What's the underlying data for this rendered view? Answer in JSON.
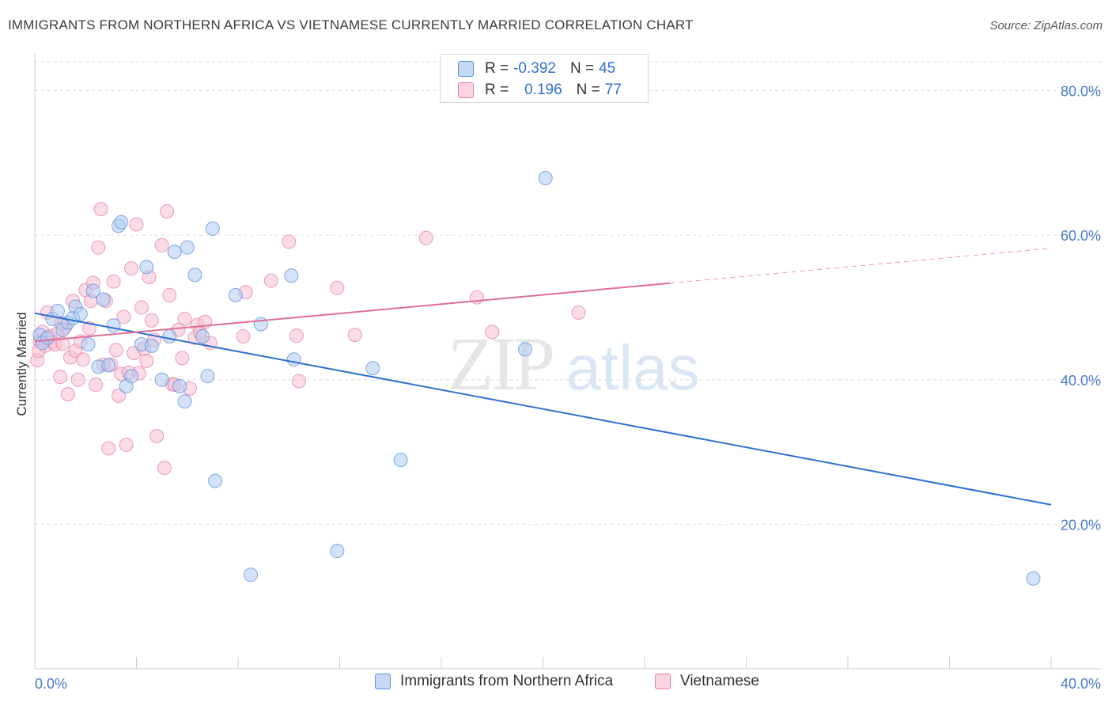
{
  "title": "IMMIGRANTS FROM NORTHERN AFRICA VS VIETNAMESE CURRENTLY MARRIED CORRELATION CHART",
  "source": "Source: ZipAtlas.com",
  "watermark": {
    "zip": "ZIP",
    "atlas": "atlas"
  },
  "colors": {
    "blue_fill": "#aecbf3",
    "blue_stroke": "#5b8fd6",
    "blue_line": "#2e6fd1",
    "pink_fill": "#f7bfd2",
    "pink_stroke": "#e37fa3",
    "pink_line": "#e06c97",
    "axis_text": "#4a7cc8",
    "grid": "#dddddd"
  },
  "legend": {
    "rows": [
      {
        "r_label": "R =",
        "r_value": "-0.392",
        "n_label": "N =",
        "n_value": "45"
      },
      {
        "r_label": "R =",
        "r_value": "0.196",
        "n_label": "N =",
        "n_value": "77"
      }
    ]
  },
  "bottom_legend": [
    "Immigrants from Northern Africa",
    "Vietnamese"
  ],
  "chart_data": {
    "type": "scatter",
    "title": "IMMIGRANTS FROM NORTHERN AFRICA VS VIETNAMESE CURRENTLY MARRIED CORRELATION CHART",
    "xlabel": "",
    "ylabel": "Currently Married",
    "xlim": [
      0,
      40
    ],
    "ylim": [
      0,
      84
    ],
    "x_tick_labels": [
      "0.0%",
      "40.0%"
    ],
    "y_ticks": [
      20,
      40,
      60,
      80
    ],
    "y_tick_labels": [
      "20.0%",
      "40.0%",
      "60.0%",
      "80.0%"
    ],
    "grid": "horizontal dashed",
    "legend_position": "top-center",
    "series": [
      {
        "name": "Immigrants from Northern Africa",
        "color": "#aecbf3",
        "r": -0.392,
        "n": 45,
        "trend": {
          "x": [
            0,
            40
          ],
          "y": [
            49.2,
            22.7
          ],
          "dashed_from": null
        },
        "points": [
          [
            0.2,
            46.2
          ],
          [
            0.3,
            45.1
          ],
          [
            0.5,
            45.8
          ],
          [
            0.7,
            48.4
          ],
          [
            0.9,
            49.5
          ],
          [
            1.1,
            46.9
          ],
          [
            1.3,
            47.9
          ],
          [
            1.5,
            48.5
          ],
          [
            1.6,
            50.1
          ],
          [
            1.8,
            49.1
          ],
          [
            2.1,
            44.9
          ],
          [
            2.3,
            52.3
          ],
          [
            2.5,
            41.8
          ],
          [
            2.7,
            51.1
          ],
          [
            2.9,
            42.0
          ],
          [
            3.1,
            47.5
          ],
          [
            3.3,
            61.3
          ],
          [
            3.4,
            61.8
          ],
          [
            3.6,
            39.1
          ],
          [
            3.8,
            40.5
          ],
          [
            4.2,
            44.9
          ],
          [
            4.4,
            55.6
          ],
          [
            4.6,
            44.7
          ],
          [
            5.0,
            40.0
          ],
          [
            5.3,
            46.0
          ],
          [
            5.5,
            57.7
          ],
          [
            5.7,
            39.1
          ],
          [
            5.9,
            37.0
          ],
          [
            6.0,
            58.3
          ],
          [
            6.3,
            54.5
          ],
          [
            6.6,
            46.0
          ],
          [
            6.8,
            40.5
          ],
          [
            7.0,
            60.9
          ],
          [
            7.1,
            26.0
          ],
          [
            7.9,
            51.7
          ],
          [
            8.5,
            13.0
          ],
          [
            8.9,
            47.7
          ],
          [
            10.1,
            54.4
          ],
          [
            10.2,
            42.8
          ],
          [
            11.9,
            16.3
          ],
          [
            13.3,
            41.6
          ],
          [
            14.4,
            28.9
          ],
          [
            19.3,
            44.2
          ],
          [
            20.1,
            67.9
          ],
          [
            39.3,
            12.5
          ]
        ]
      },
      {
        "name": "Vietnamese",
        "color": "#f7bfd2",
        "r": 0.196,
        "n": 77,
        "trend": {
          "x": [
            0,
            40
          ],
          "y": [
            45.3,
            58.2
          ],
          "dashed_from": 25
        },
        "points": [
          [
            0.1,
            42.7
          ],
          [
            0.2,
            45.3
          ],
          [
            0.3,
            46.6
          ],
          [
            0.4,
            44.7
          ],
          [
            0.5,
            49.3
          ],
          [
            0.6,
            46.0
          ],
          [
            0.7,
            45.2
          ],
          [
            0.8,
            44.9
          ],
          [
            0.9,
            46.4
          ],
          [
            1.0,
            40.4
          ],
          [
            1.1,
            45.0
          ],
          [
            1.2,
            47.3
          ],
          [
            1.3,
            38.0
          ],
          [
            1.4,
            43.1
          ],
          [
            1.5,
            50.9
          ],
          [
            1.6,
            44.0
          ],
          [
            1.7,
            40.0
          ],
          [
            1.8,
            45.3
          ],
          [
            1.9,
            42.8
          ],
          [
            2.0,
            52.4
          ],
          [
            2.2,
            50.9
          ],
          [
            2.3,
            53.4
          ],
          [
            2.4,
            39.3
          ],
          [
            2.5,
            58.3
          ],
          [
            2.6,
            63.6
          ],
          [
            2.7,
            42.1
          ],
          [
            2.8,
            50.9
          ],
          [
            2.9,
            30.5
          ],
          [
            3.0,
            42.1
          ],
          [
            3.1,
            53.6
          ],
          [
            3.2,
            44.1
          ],
          [
            3.3,
            37.8
          ],
          [
            3.4,
            40.8
          ],
          [
            3.5,
            48.7
          ],
          [
            3.6,
            31.0
          ],
          [
            3.7,
            41.0
          ],
          [
            3.8,
            55.4
          ],
          [
            3.9,
            43.7
          ],
          [
            4.0,
            61.5
          ],
          [
            4.1,
            40.9
          ],
          [
            4.2,
            50.0
          ],
          [
            4.3,
            44.3
          ],
          [
            4.4,
            42.6
          ],
          [
            4.5,
            54.2
          ],
          [
            4.6,
            48.2
          ],
          [
            4.7,
            45.5
          ],
          [
            4.8,
            32.2
          ],
          [
            5.0,
            58.6
          ],
          [
            5.1,
            27.8
          ],
          [
            5.2,
            63.3
          ],
          [
            5.3,
            51.7
          ],
          [
            5.4,
            39.4
          ],
          [
            5.5,
            39.3
          ],
          [
            5.8,
            43.0
          ],
          [
            5.9,
            48.4
          ],
          [
            6.1,
            38.8
          ],
          [
            6.3,
            45.8
          ],
          [
            6.4,
            47.6
          ],
          [
            6.5,
            46.5
          ],
          [
            6.7,
            48.0
          ],
          [
            6.9,
            45.1
          ],
          [
            8.2,
            46.0
          ],
          [
            8.3,
            52.1
          ],
          [
            9.3,
            53.7
          ],
          [
            10.0,
            59.1
          ],
          [
            10.3,
            46.1
          ],
          [
            10.4,
            39.8
          ],
          [
            11.9,
            52.7
          ],
          [
            12.6,
            46.2
          ],
          [
            15.4,
            59.6
          ],
          [
            17.4,
            51.4
          ],
          [
            18.0,
            46.6
          ],
          [
            21.4,
            49.3
          ],
          [
            0.15,
            44.0
          ],
          [
            1.05,
            47.8
          ],
          [
            2.15,
            47.1
          ],
          [
            5.65,
            46.9
          ]
        ]
      }
    ]
  }
}
